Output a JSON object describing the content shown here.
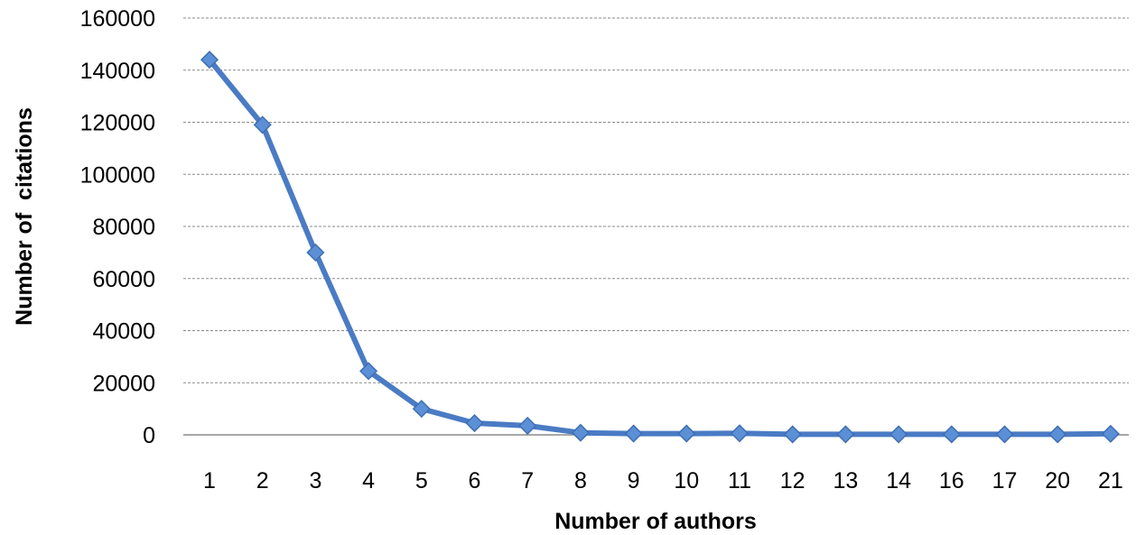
{
  "chart_data": {
    "type": "line",
    "title": "",
    "xlabel": "Number of authors",
    "ylabel": "Number of  citations",
    "categories": [
      "1",
      "2",
      "3",
      "4",
      "5",
      "6",
      "7",
      "8",
      "9",
      "10",
      "11",
      "12",
      "13",
      "14",
      "16",
      "17",
      "20",
      "21"
    ],
    "series": [
      {
        "values": [
          144000,
          119000,
          70000,
          24500,
          10000,
          4500,
          3500,
          800,
          500,
          500,
          600,
          200,
          200,
          200,
          200,
          200,
          200,
          400
        ],
        "color": "#4a7bc4",
        "marker": "diamond"
      }
    ],
    "y_ticks": [
      "0",
      "20000",
      "40000",
      "60000",
      "80000",
      "100000",
      "120000",
      "140000",
      "160000"
    ],
    "ylim": [
      0,
      160000
    ],
    "grid": true
  }
}
